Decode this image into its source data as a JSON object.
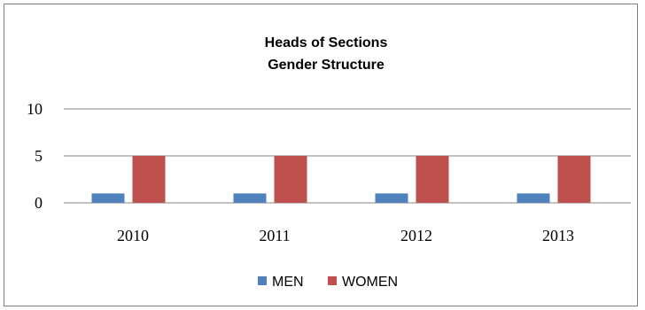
{
  "chart_data": {
    "type": "bar",
    "title": [
      "Heads of Sections",
      "Gender Structure"
    ],
    "categories": [
      "2010",
      "2011",
      "2012",
      "2013"
    ],
    "series": [
      {
        "name": "MEN",
        "values": [
          1,
          1,
          1,
          1
        ],
        "color": "#4f81bd"
      },
      {
        "name": "WOMEN",
        "values": [
          5,
          5,
          5,
          5
        ],
        "color": "#c0504d"
      }
    ],
    "yticks": [
      "0",
      "5",
      "10"
    ],
    "ylim": [
      0,
      10
    ],
    "grid": true,
    "gridColor": "#868686",
    "legend": "bottom"
  }
}
